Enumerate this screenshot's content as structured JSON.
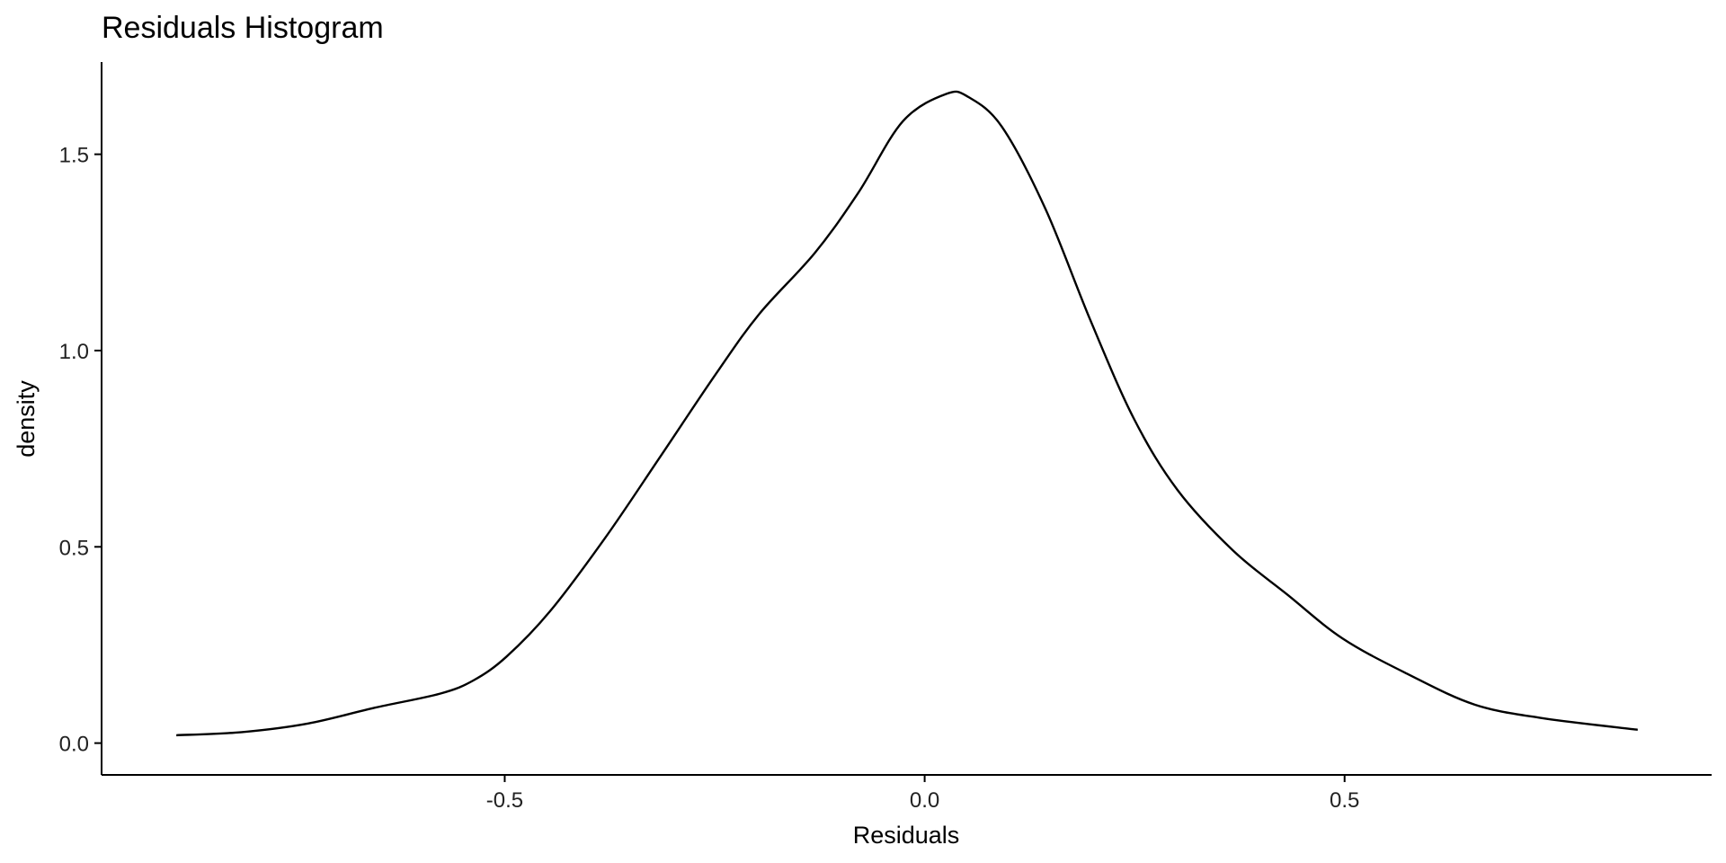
{
  "chart_data": {
    "type": "line",
    "title": "Residuals Histogram",
    "x_label": "Residuals",
    "y_label": "density",
    "x": [
      -0.891,
      -0.813,
      -0.734,
      -0.655,
      -0.577,
      -0.537,
      -0.498,
      -0.446,
      -0.38,
      -0.315,
      -0.249,
      -0.197,
      -0.131,
      -0.079,
      -0.026,
      0.026,
      0.052,
      0.092,
      0.144,
      0.197,
      0.249,
      0.301,
      0.367,
      0.432,
      0.498,
      0.577,
      0.655,
      0.734,
      0.849
    ],
    "values": [
      0.02,
      0.028,
      0.05,
      0.09,
      0.126,
      0.16,
      0.22,
      0.336,
      0.524,
      0.729,
      0.939,
      1.093,
      1.248,
      1.402,
      1.584,
      1.654,
      1.646,
      1.57,
      1.36,
      1.079,
      0.827,
      0.645,
      0.491,
      0.378,
      0.266,
      0.174,
      0.098,
      0.064,
      0.034
    ],
    "color": "#000000",
    "xlim": [
      -0.98,
      0.937
    ],
    "ylim": [
      -0.081,
      1.735
    ],
    "xticks": [
      -0.5,
      {
        "value": 0,
        "label": "0.0"
      },
      0.5
    ],
    "yticks": [
      {
        "value": 0,
        "label": "0.0"
      },
      0.5,
      {
        "value": 1,
        "label": "1.0"
      },
      1.5
    ],
    "grid": false
  }
}
